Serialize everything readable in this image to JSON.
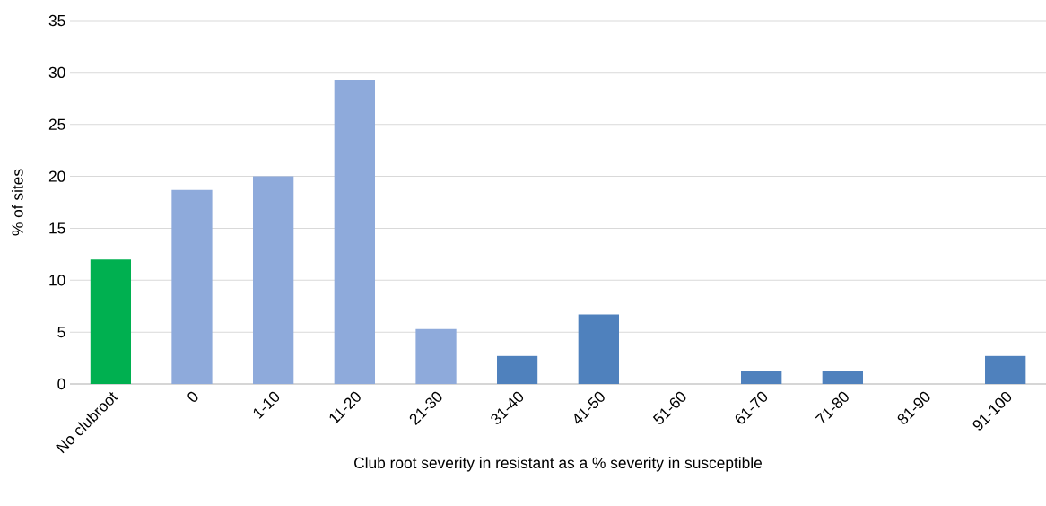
{
  "chart_data": {
    "type": "bar",
    "xlabel": "Club root severity in resistant as a % severity in susceptible",
    "ylabel": "% of sites",
    "categories": [
      "No clubroot",
      "0",
      "1-10",
      "11-20",
      "21-30",
      "31-40",
      "41-50",
      "51-60",
      "61-70",
      "71-80",
      "81-90",
      "91-100"
    ],
    "values": [
      12,
      18.7,
      20,
      29.3,
      5.3,
      2.7,
      6.7,
      0,
      1.3,
      1.3,
      0,
      2.7
    ],
    "colors": [
      "#00b050",
      "#8eaadb",
      "#8eaadb",
      "#8eaadb",
      "#8eaadb",
      "#4f81bd",
      "#4f81bd",
      "#4f81bd",
      "#4f81bd",
      "#4f81bd",
      "#4f81bd",
      "#4f81bd"
    ],
    "ylim": [
      0,
      35
    ],
    "yticks": [
      0,
      5,
      10,
      15,
      20,
      25,
      30,
      35
    ],
    "grid": "y"
  }
}
